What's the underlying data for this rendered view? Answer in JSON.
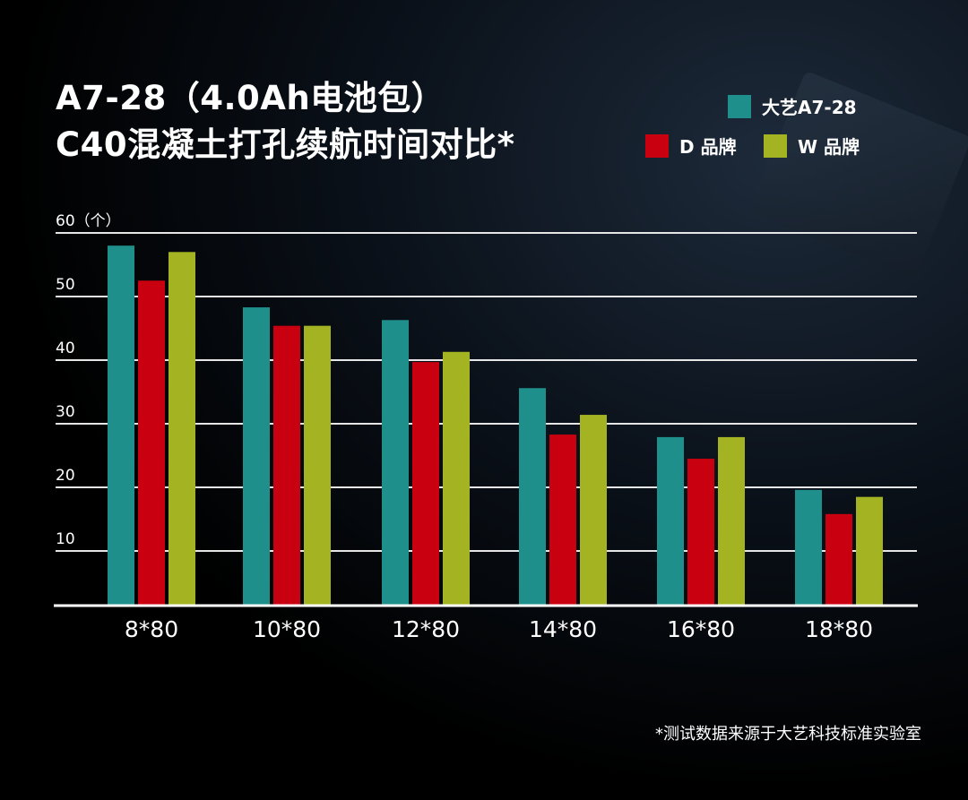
{
  "title_line1": "A7-28（4.0Ah电池包）",
  "title_line2": "C40混凝土打孔续航时间对比*",
  "footnote": "*测试数据来源于大艺科技标准实验室",
  "chart_data": {
    "type": "bar",
    "title": "A7-28（4.0Ah电池包） C40混凝土打孔续航时间对比*",
    "ylabel": "（个）",
    "xlabel": "",
    "ylim": [
      0,
      60
    ],
    "yticks": [
      "10",
      "20",
      "30",
      "40",
      "50",
      "60（个）"
    ],
    "grid": true,
    "legend_position": "top-right",
    "categories": [
      "8*80",
      "10*80",
      "12*80",
      "14*80",
      "16*80",
      "18*80"
    ],
    "series": [
      {
        "name": "大艺A7-28",
        "color": "#1f8f8c",
        "values": [
          58,
          48.3,
          46.3,
          35.6,
          27.9,
          19.6
        ]
      },
      {
        "name": "D 品牌",
        "color": "#c8000f",
        "values": [
          52.5,
          45.4,
          39.7,
          28.3,
          24.5,
          15.8
        ]
      },
      {
        "name": "W 品牌",
        "color": "#a3b321",
        "values": [
          57,
          45.4,
          41.3,
          31.4,
          27.9,
          18.5
        ]
      }
    ]
  }
}
